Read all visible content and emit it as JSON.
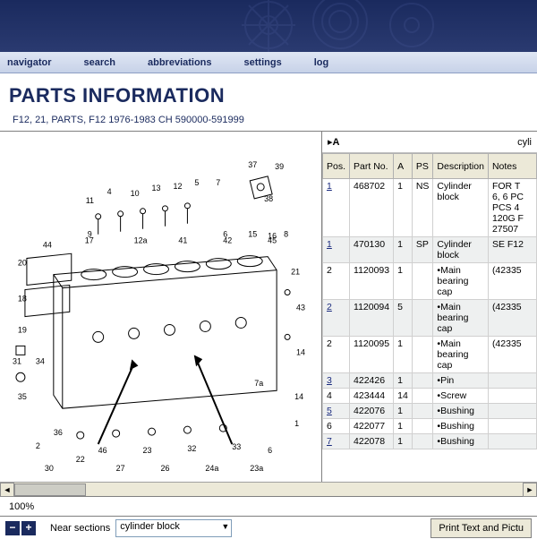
{
  "banner": {
    "bg_from": "#1a2a5e",
    "bg_to": "#2a3a70"
  },
  "nav": {
    "items": [
      "navigator",
      "search",
      "abbreviations",
      "settings",
      "log"
    ]
  },
  "page_title": "PARTS INFORMATION",
  "breadcrumb": "F12, 21, PARTS, F12 1976-1983 CH 590000-591999",
  "diagram": {
    "callouts": [
      "37",
      "39",
      "38",
      "11",
      "4",
      "10",
      "13",
      "12",
      "5",
      "7",
      "9",
      "6",
      "15",
      "16",
      "8",
      "21",
      "17",
      "12a",
      "41",
      "42",
      "45",
      "44",
      "43",
      "14",
      "20",
      "18",
      "19",
      "34",
      "35",
      "36",
      "46",
      "23",
      "32",
      "33",
      "2",
      "22",
      "6",
      "1",
      "14",
      "26",
      "27",
      "24a",
      "23a",
      "30",
      "31",
      "7a"
    ]
  },
  "group": {
    "letter": "A",
    "title": "cyli"
  },
  "columns": [
    "Pos.",
    "Part No.",
    "A",
    "PS",
    "Description",
    "Notes"
  ],
  "rows": [
    {
      "pos": "1",
      "pos_link": true,
      "partno": "468702",
      "a": "1",
      "ps": "NS",
      "desc": "Cylinder block",
      "notes": "FOR T\n6, 6 PC\nPCS 4\n120G F\n27507"
    },
    {
      "pos": "1",
      "pos_link": true,
      "partno": "470130",
      "a": "1",
      "ps": "SP",
      "desc": "Cylinder block",
      "notes": "SE F12",
      "alt": true
    },
    {
      "pos": "2",
      "pos_link": false,
      "partno": "1120093",
      "a": "1",
      "ps": "",
      "desc": "•Main bearing cap",
      "notes": "(42335"
    },
    {
      "pos": "2",
      "pos_link": true,
      "partno": "1120094",
      "a": "5",
      "ps": "",
      "desc": "•Main bearing cap",
      "notes": "(42335",
      "alt": true
    },
    {
      "pos": "2",
      "pos_link": false,
      "partno": "1120095",
      "a": "1",
      "ps": "",
      "desc": "•Main bearing cap",
      "notes": "(42335"
    },
    {
      "pos": "3",
      "pos_link": true,
      "partno": "422426",
      "a": "1",
      "ps": "",
      "desc": "•Pin",
      "notes": "",
      "alt": true
    },
    {
      "pos": "4",
      "pos_link": false,
      "partno": "423444",
      "a": "14",
      "ps": "",
      "desc": "•Screw",
      "notes": ""
    },
    {
      "pos": "5",
      "pos_link": true,
      "partno": "422076",
      "a": "1",
      "ps": "",
      "desc": "•Bushing",
      "notes": "",
      "alt": true
    },
    {
      "pos": "6",
      "pos_link": false,
      "partno": "422077",
      "a": "1",
      "ps": "",
      "desc": "•Bushing",
      "notes": ""
    },
    {
      "pos": "7",
      "pos_link": true,
      "partno": "422078",
      "a": "1",
      "ps": "",
      "desc": "•Bushing",
      "notes": "",
      "alt": true
    }
  ],
  "zoom_percent": "100%",
  "near_sections_label": "Near sections",
  "near_sections_value": "cylinder block",
  "print_label": "Print Text and Pictu",
  "colors": {
    "header_bg": "#ece9d8",
    "alt_row": "#eef0f0",
    "border": "#b0b0b0",
    "link": "#1a2a7e"
  }
}
